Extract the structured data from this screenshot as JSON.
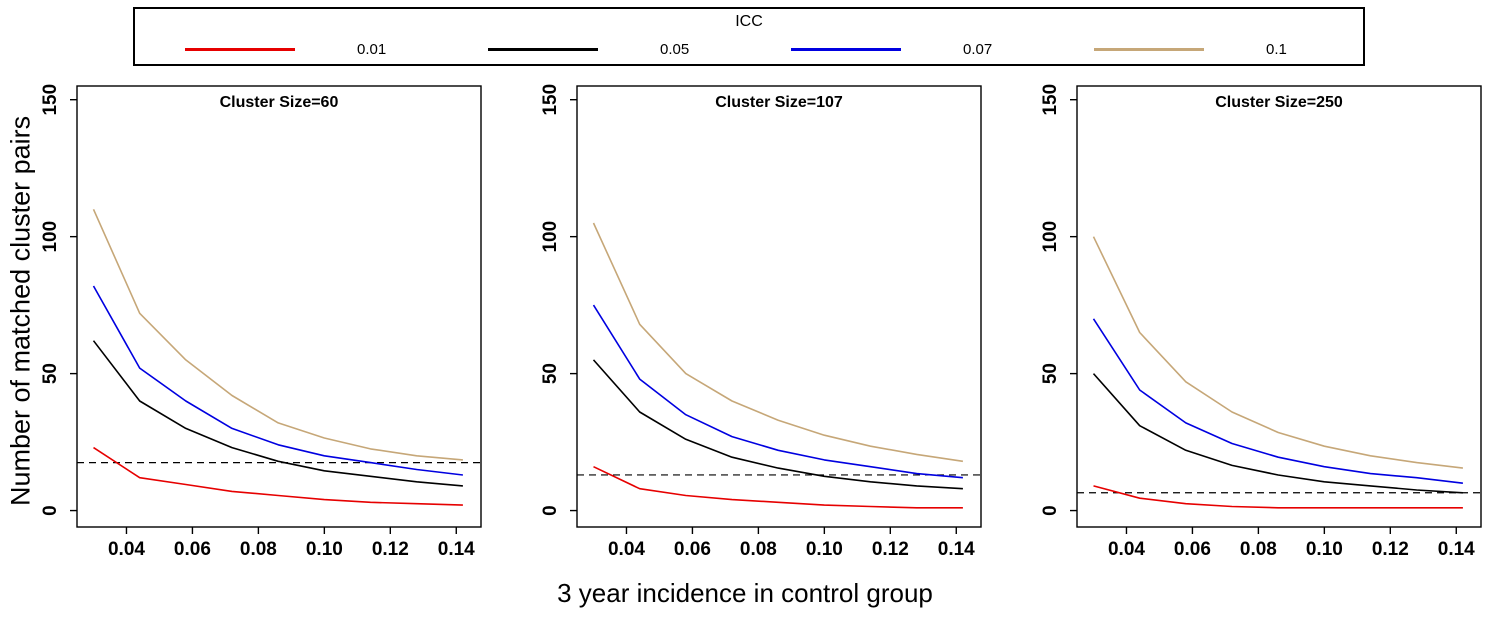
{
  "figure": {
    "x_axis_label": "3 year incidence in control group",
    "y_axis_label": "Number of matched cluster pairs",
    "background_color": "#ffffff",
    "legend": {
      "title": "ICC",
      "entries": [
        {
          "label": "0.01",
          "color": "#e60000"
        },
        {
          "label": "0.05",
          "color": "#000000"
        },
        {
          "label": "0.07",
          "color": "#0000e0"
        },
        {
          "label": "0.1",
          "color": "#c6a778"
        }
      ]
    }
  },
  "chart_data": [
    {
      "type": "line",
      "title": "Cluster Size=60",
      "x": [
        0.03,
        0.044,
        0.058,
        0.072,
        0.086,
        0.1,
        0.114,
        0.128,
        0.142
      ],
      "series": [
        {
          "name": "ICC 0.01",
          "color": "#e60000",
          "values": [
            23,
            12,
            9.5,
            7,
            5.5,
            4,
            3,
            2.5,
            2
          ]
        },
        {
          "name": "ICC 0.05",
          "color": "#000000",
          "values": [
            62,
            40,
            30,
            23,
            18,
            14.5,
            12.5,
            10.5,
            9
          ]
        },
        {
          "name": "ICC 0.07",
          "color": "#0000e0",
          "values": [
            82,
            52,
            40,
            30,
            24,
            20,
            17.5,
            15,
            13
          ]
        },
        {
          "name": "ICC 0.1",
          "color": "#c6a778",
          "values": [
            110,
            72,
            55,
            42,
            32,
            26.5,
            22.5,
            20,
            18.5
          ]
        }
      ],
      "dashed_threshold": 17.5,
      "xlim": [
        0.025,
        0.1475
      ],
      "ylim": [
        -6,
        155
      ],
      "xticks": [
        "0.04",
        "0.06",
        "0.08",
        "0.10",
        "0.12",
        "0.14"
      ],
      "xtick_values": [
        0.04,
        0.06,
        0.08,
        0.1,
        0.12,
        0.14
      ],
      "yticks": [
        0,
        50,
        100,
        150
      ],
      "grid": false,
      "legend_position": "top-outside"
    },
    {
      "type": "line",
      "title": "Cluster Size=107",
      "x": [
        0.03,
        0.044,
        0.058,
        0.072,
        0.086,
        0.1,
        0.114,
        0.128,
        0.142
      ],
      "series": [
        {
          "name": "ICC 0.01",
          "color": "#e60000",
          "values": [
            16,
            8,
            5.5,
            4,
            3,
            2,
            1.5,
            1,
            1
          ]
        },
        {
          "name": "ICC 0.05",
          "color": "#000000",
          "values": [
            55,
            36,
            26,
            19.5,
            15.5,
            12.5,
            10.5,
            9,
            8
          ]
        },
        {
          "name": "ICC 0.07",
          "color": "#0000e0",
          "values": [
            75,
            48,
            35,
            27,
            22,
            18.5,
            16,
            13.5,
            12
          ]
        },
        {
          "name": "ICC 0.1",
          "color": "#c6a778",
          "values": [
            105,
            68,
            50,
            40,
            33,
            27.5,
            23.5,
            20.5,
            18
          ]
        }
      ],
      "dashed_threshold": 13,
      "xlim": [
        0.025,
        0.1475
      ],
      "ylim": [
        -6,
        155
      ],
      "xticks": [
        "0.04",
        "0.06",
        "0.08",
        "0.10",
        "0.12",
        "0.14"
      ],
      "xtick_values": [
        0.04,
        0.06,
        0.08,
        0.1,
        0.12,
        0.14
      ],
      "yticks": [
        0,
        50,
        100,
        150
      ],
      "grid": false,
      "legend_position": "top-outside"
    },
    {
      "type": "line",
      "title": "Cluster Size=250",
      "x": [
        0.03,
        0.044,
        0.058,
        0.072,
        0.086,
        0.1,
        0.114,
        0.128,
        0.142
      ],
      "series": [
        {
          "name": "ICC 0.01",
          "color": "#e60000",
          "values": [
            9,
            4.5,
            2.5,
            1.5,
            1,
            1,
            1,
            1,
            1
          ]
        },
        {
          "name": "ICC 0.05",
          "color": "#000000",
          "values": [
            50,
            31,
            22,
            16.5,
            13,
            10.5,
            9,
            7.5,
            6.5
          ]
        },
        {
          "name": "ICC 0.07",
          "color": "#0000e0",
          "values": [
            70,
            44,
            32,
            24.5,
            19.5,
            16,
            13.5,
            12,
            10
          ]
        },
        {
          "name": "ICC 0.1",
          "color": "#c6a778",
          "values": [
            100,
            65,
            47,
            36,
            28.5,
            23.5,
            20,
            17.5,
            15.5
          ]
        }
      ],
      "dashed_threshold": 6.5,
      "xlim": [
        0.025,
        0.1475
      ],
      "ylim": [
        -6,
        155
      ],
      "xticks": [
        "0.04",
        "0.06",
        "0.08",
        "0.10",
        "0.12",
        "0.14"
      ],
      "xtick_values": [
        0.04,
        0.06,
        0.08,
        0.1,
        0.12,
        0.14
      ],
      "yticks": [
        0,
        50,
        100,
        150
      ],
      "grid": false,
      "legend_position": "top-outside"
    }
  ]
}
